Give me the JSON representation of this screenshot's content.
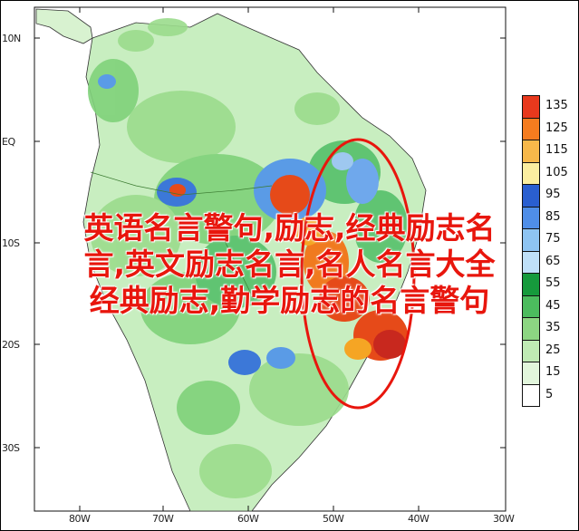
{
  "map": {
    "lat_labels": [
      "10N",
      "EQ",
      "10S",
      "20S",
      "30S"
    ],
    "lon_labels": [
      "80W",
      "70W",
      "60W",
      "50W",
      "40W",
      "30W"
    ],
    "colors": {
      "land_base": "#c8eec0",
      "light_green": "#9bdc8c",
      "green": "#55c06a",
      "dark_green": "#169a3c",
      "light_blue": "#9ec8f0",
      "blue": "#3c78d8",
      "yellow": "#f5f08a",
      "orange": "#f5a524",
      "red": "#e64a19",
      "dark_red": "#c8281e",
      "highlight_ellipse": "#e8160d"
    }
  },
  "legend": {
    "labels": [
      "135",
      "125",
      "115",
      "105",
      "95",
      "85",
      "75",
      "65",
      "55",
      "45",
      "35",
      "25",
      "15",
      "5"
    ],
    "colors": [
      "#e8391d",
      "#f57c1f",
      "#f7b84a",
      "#fbeea0",
      "#2a5fd0",
      "#4f8ee8",
      "#8ec4f2",
      "#bfe0f8",
      "#169a3c",
      "#4cbc5e",
      "#8cd682",
      "#bfeab4",
      "#e2f6dc",
      "#ffffff"
    ]
  },
  "overlay": {
    "line1": "英语名言警句,励志,经典励志名",
    "line2": "言,英文励志名言,名人名言大全",
    "line3": "经典励志,勤学励志的名言警句"
  }
}
